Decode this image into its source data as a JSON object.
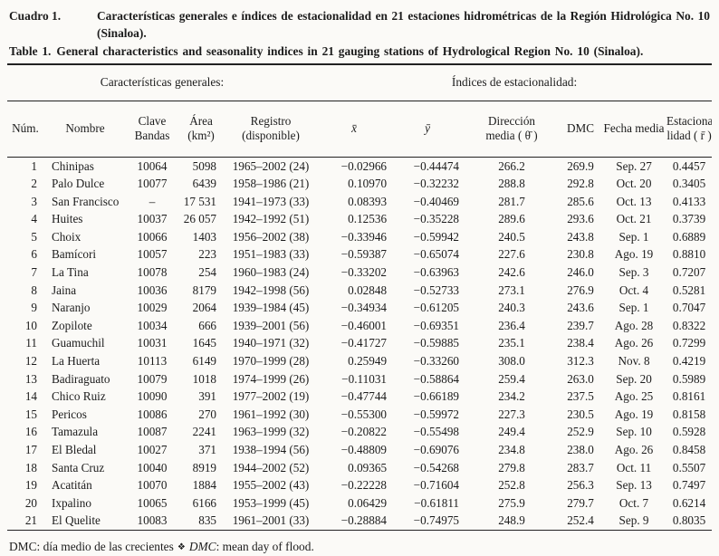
{
  "captions": {
    "es_label": "Cuadro 1.",
    "es_text": "Características generales e índices de estacionalidad en 21 estaciones hidrométricas de la Región Hidrológica No. 10 (Sinaloa).",
    "en_label": "Table 1.",
    "en_text": "General characteristics and seasonality indices in 21 gauging stations of Hydrological Region No. 10 (Sinaloa)."
  },
  "table": {
    "group_left": "Características generales:",
    "group_right": "Índices de estacionalidad:",
    "headers": [
      "Núm.",
      "Nombre",
      "Clave\nBandas",
      "Área\n(km²)",
      "Registro\n(disponible)",
      "x̄",
      "ȳ",
      "Dirección\nmedia ( θ̄ )",
      "DMC",
      "Fecha media",
      "Estaciona\nlidad ( r̄ )"
    ],
    "rows": [
      [
        "1",
        "Chinipas",
        "10064",
        "5098",
        "1965–2002 (24)",
        "−0.02966",
        "−0.44474",
        "266.2",
        "269.9",
        "Sep. 27",
        "0.4457"
      ],
      [
        "2",
        "Palo Dulce",
        "10077",
        "6439",
        "1958–1986 (21)",
        "0.10970",
        "−0.32232",
        "288.8",
        "292.8",
        "Oct. 20",
        "0.3405"
      ],
      [
        "3",
        "San Francisco",
        "–",
        "17 531",
        "1941–1973 (33)",
        "0.08393",
        "−0.40469",
        "281.7",
        "285.6",
        "Oct. 13",
        "0.4133"
      ],
      [
        "4",
        "Huites",
        "10037",
        "26 057",
        "1942–1992 (51)",
        "0.12536",
        "−0.35228",
        "289.6",
        "293.6",
        "Oct. 21",
        "0.3739"
      ],
      [
        "5",
        "Choix",
        "10066",
        "1403",
        "1956–2002 (38)",
        "−0.33946",
        "−0.59942",
        "240.5",
        "243.8",
        "Sep. 1",
        "0.6889"
      ],
      [
        "6",
        "Bamícori",
        "10057",
        "223",
        "1951–1983 (33)",
        "−0.59387",
        "−0.65074",
        "227.6",
        "230.8",
        "Ago. 19",
        "0.8810"
      ],
      [
        "7",
        "La Tina",
        "10078",
        "254",
        "1960–1983 (24)",
        "−0.33202",
        "−0.63963",
        "242.6",
        "246.0",
        "Sep. 3",
        "0.7207"
      ],
      [
        "8",
        "Jaina",
        "10036",
        "8179",
        "1942–1998 (56)",
        "0.02848",
        "−0.52733",
        "273.1",
        "276.9",
        "Oct. 4",
        "0.5281"
      ],
      [
        "9",
        "Naranjo",
        "10029",
        "2064",
        "1939–1984 (45)",
        "−0.34934",
        "−0.61205",
        "240.3",
        "243.6",
        "Sep. 1",
        "0.7047"
      ],
      [
        "10",
        "Zopilote",
        "10034",
        "666",
        "1939–2001 (56)",
        "−0.46001",
        "−0.69351",
        "236.4",
        "239.7",
        "Ago. 28",
        "0.8322"
      ],
      [
        "11",
        "Guamuchil",
        "10031",
        "1645",
        "1940–1971 (32)",
        "−0.41727",
        "−0.59885",
        "235.1",
        "238.4",
        "Ago. 26",
        "0.7299"
      ],
      [
        "12",
        "La Huerta",
        "10113",
        "6149",
        "1970–1999 (28)",
        "0.25949",
        "−0.33260",
        "308.0",
        "312.3",
        "Nov. 8",
        "0.4219"
      ],
      [
        "13",
        "Badiraguato",
        "10079",
        "1018",
        "1974–1999 (26)",
        "−0.11031",
        "−0.58864",
        "259.4",
        "263.0",
        "Sep. 20",
        "0.5989"
      ],
      [
        "14",
        "Chico Ruiz",
        "10090",
        "391",
        "1977–2002 (19)",
        "−0.47744",
        "−0.66189",
        "234.2",
        "237.5",
        "Ago. 25",
        "0.8161"
      ],
      [
        "15",
        "Pericos",
        "10086",
        "270",
        "1961–1992 (30)",
        "−0.55300",
        "−0.59972",
        "227.3",
        "230.5",
        "Ago. 19",
        "0.8158"
      ],
      [
        "16",
        "Tamazula",
        "10087",
        "2241",
        "1963–1999 (32)",
        "−0.20822",
        "−0.55498",
        "249.4",
        "252.9",
        "Sep. 10",
        "0.5928"
      ],
      [
        "17",
        "El Bledal",
        "10027",
        "371",
        "1938–1994 (56)",
        "−0.48809",
        "−0.69076",
        "234.8",
        "238.0",
        "Ago. 26",
        "0.8458"
      ],
      [
        "18",
        "Santa Cruz",
        "10040",
        "8919",
        "1944–2002 (52)",
        "0.09365",
        "−0.54268",
        "279.8",
        "283.7",
        "Oct. 11",
        "0.5507"
      ],
      [
        "19",
        "Acatitán",
        "10070",
        "1884",
        "1955–2002 (43)",
        "−0.22228",
        "−0.71604",
        "252.8",
        "256.3",
        "Sep. 13",
        "0.7497"
      ],
      [
        "20",
        "Ixpalino",
        "10065",
        "6166",
        "1953–1999 (45)",
        "0.06429",
        "−0.61811",
        "275.9",
        "279.7",
        "Oct. 7",
        "0.6214"
      ],
      [
        "21",
        "El Quelite",
        "10083",
        "835",
        "1961–2001 (33)",
        "−0.28884",
        "−0.74975",
        "248.9",
        "252.4",
        "Sep. 9",
        "0.8035"
      ]
    ]
  },
  "footnote": {
    "es": "DMC: día medio de las crecientes",
    "separator": "❖",
    "en_term": "DMC",
    "en_rest": ": mean day of flood."
  }
}
